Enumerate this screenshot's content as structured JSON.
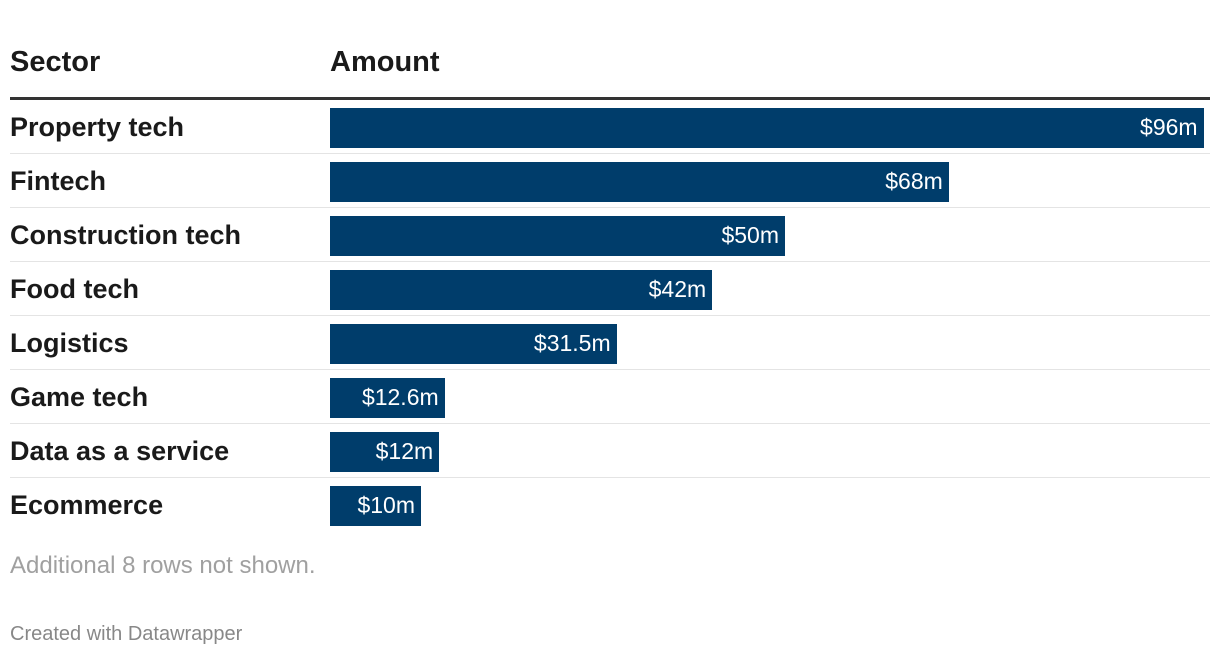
{
  "table": {
    "header_sector": "Sector",
    "header_amount": "Amount"
  },
  "chart_data": {
    "type": "bar",
    "orientation": "horizontal",
    "categories": [
      "Property tech",
      "Fintech",
      "Construction tech",
      "Food tech",
      "Logistics",
      "Game tech",
      "Data as a service",
      "Ecommerce"
    ],
    "values": [
      96,
      68,
      50,
      42,
      31.5,
      12.6,
      12,
      10
    ],
    "value_labels": [
      "$96m",
      "$68m",
      "$50m",
      "$42m",
      "$31.5m",
      "$12.6m",
      "$12m",
      "$10m"
    ],
    "xlim": [
      0,
      100
    ],
    "bar_color": "#003d6b",
    "grid": false,
    "legend": "none"
  },
  "note": "Additional 8 rows not shown.",
  "credit": "Created with Datawrapper"
}
